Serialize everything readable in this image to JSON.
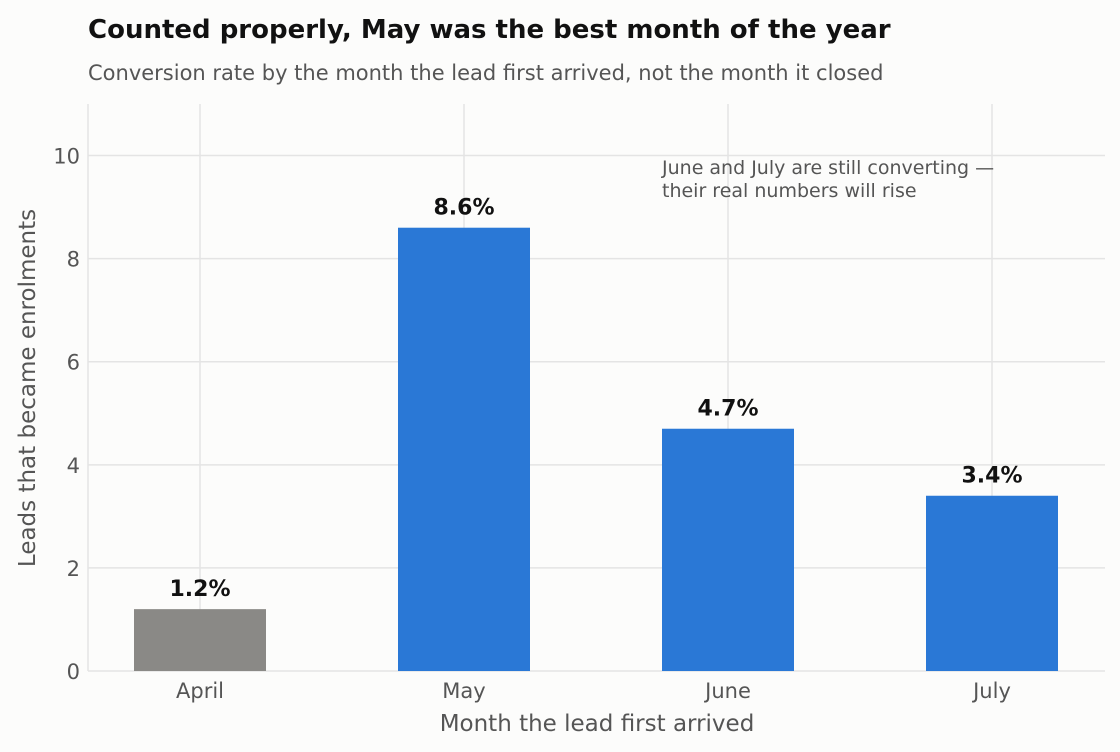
{
  "chart_data": {
    "type": "bar",
    "title": "Counted properly, May was the best month of the year",
    "subtitle": "Conversion rate by the month the lead first arrived, not the month it closed",
    "xlabel": "Month the lead first arrived",
    "ylabel": "Leads that became enrolments",
    "categories": [
      "April",
      "May",
      "June",
      "July"
    ],
    "values": [
      1.2,
      8.6,
      4.7,
      3.4
    ],
    "value_labels": [
      "1.2%",
      "8.6%",
      "4.7%",
      "3.4%"
    ],
    "bar_colors": [
      "#8a8986",
      "#2a78d6",
      "#2a78d6",
      "#2a78d6"
    ],
    "ylim": [
      0,
      11
    ],
    "yticks": [
      0,
      2,
      4,
      6,
      8,
      10
    ],
    "grid": true,
    "annotation_lines": [
      "June and July are still converting —",
      "their real numbers will rise"
    ]
  }
}
